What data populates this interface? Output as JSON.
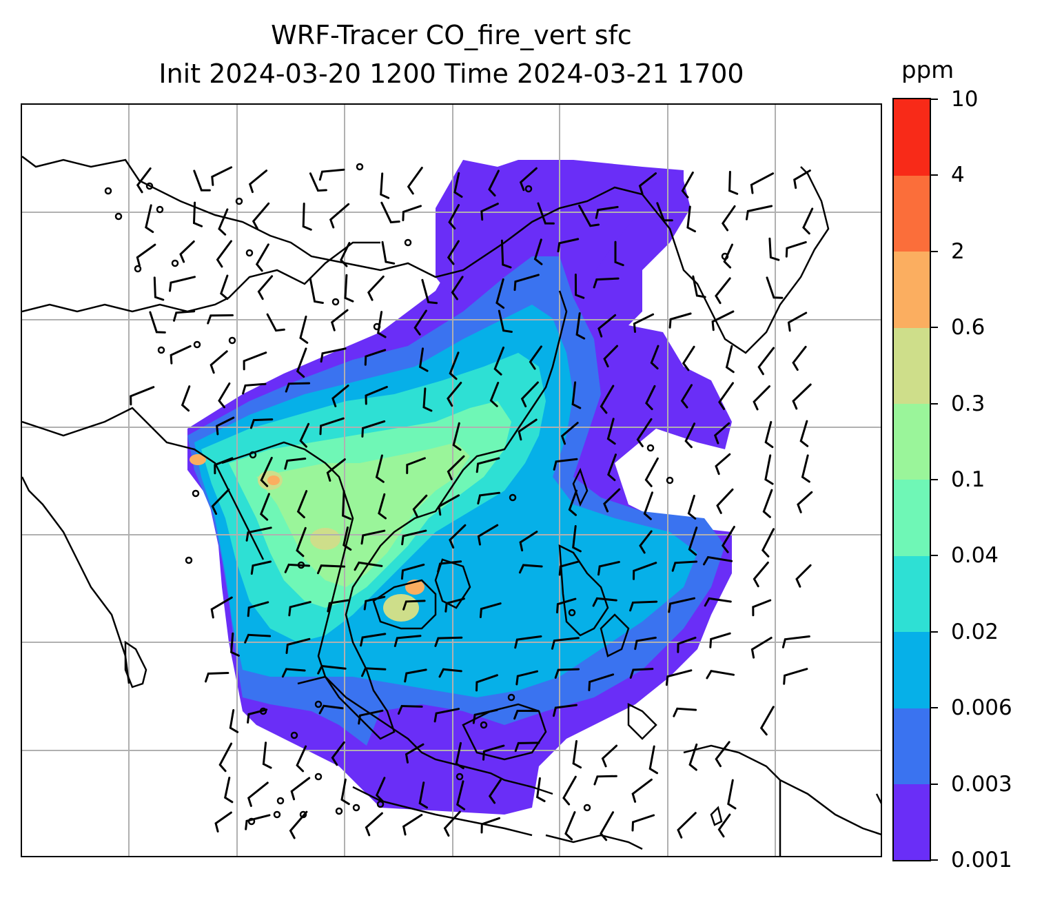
{
  "title": {
    "line1": "WRF-Tracer CO_fire_vert sfc",
    "line2": "Init 2024-03-20 1200 Time 2024-03-21 1700"
  },
  "colorbar": {
    "unit": "ppm",
    "levels": [
      "0.001",
      "0.003",
      "0.006",
      "0.02",
      "0.04",
      "0.1",
      "0.3",
      "0.6",
      "2",
      "4",
      "10"
    ],
    "colors": [
      "#6a2ef7",
      "#3a73f0",
      "#06b0e8",
      "#2ee0d4",
      "#6ff7b6",
      "#9af59a",
      "#cede8a",
      "#fbae60",
      "#fb6e3a",
      "#f82a18"
    ]
  },
  "map": {
    "background": "#ffffff",
    "gridline_color": "#b0b0b0",
    "coastline_color": "#000000",
    "features": [
      "coastlines",
      "gridlines",
      "wind-barbs",
      "calm-circles",
      "tracer-concentration-field"
    ]
  }
}
